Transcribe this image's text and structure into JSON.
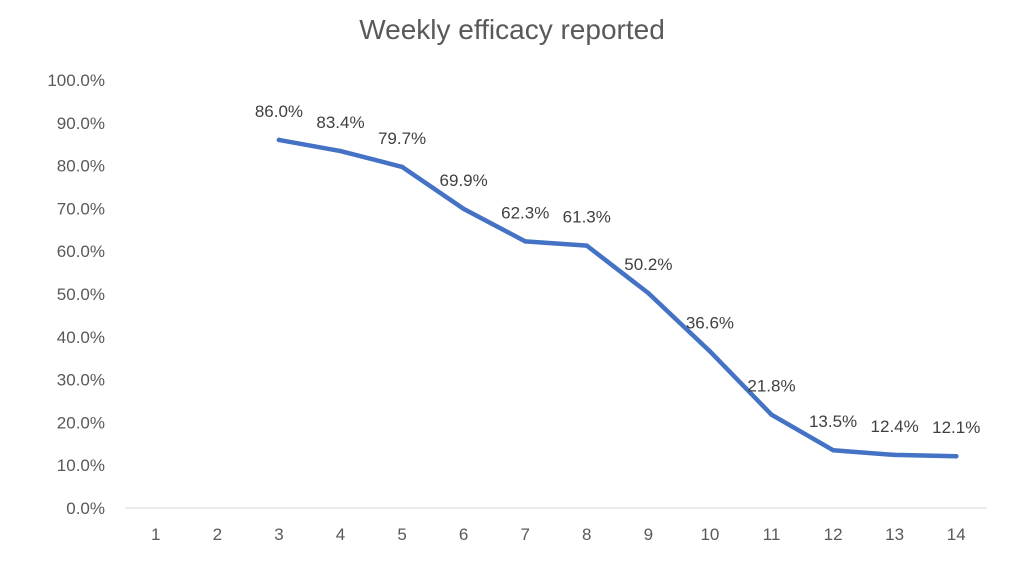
{
  "chart_data": {
    "type": "line",
    "title": "Weekly efficacy reported",
    "xlabel": "",
    "ylabel": "",
    "categories": [
      "1",
      "2",
      "3",
      "4",
      "5",
      "6",
      "7",
      "8",
      "9",
      "10",
      "11",
      "12",
      "13",
      "14"
    ],
    "series": [
      {
        "values": [
          null,
          null,
          86.0,
          83.4,
          79.7,
          69.9,
          62.3,
          61.3,
          50.2,
          36.6,
          21.8,
          13.5,
          12.4,
          12.1
        ],
        "data_labels": [
          "",
          "",
          "86.0%",
          "83.4%",
          "79.7%",
          "69.9%",
          "62.3%",
          "61.3%",
          "50.2%",
          "36.6%",
          "21.8%",
          "13.5%",
          "12.4%",
          "12.1%"
        ],
        "color": "#4472C4"
      }
    ],
    "ylim": [
      0,
      100
    ],
    "y_ticks": [
      "0.0%",
      "10.0%",
      "20.0%",
      "30.0%",
      "40.0%",
      "50.0%",
      "60.0%",
      "70.0%",
      "80.0%",
      "90.0%",
      "100.0%"
    ],
    "grid": false,
    "legend": "none"
  }
}
